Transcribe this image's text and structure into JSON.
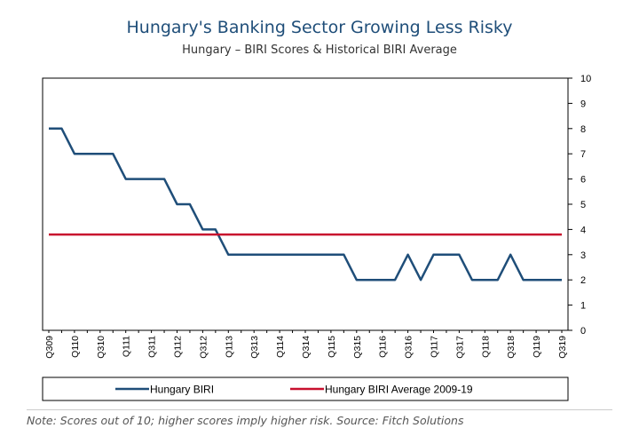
{
  "title": "Hungary's Banking Sector Growing Less Risky",
  "subtitle": "Hungary – BIRI Scores & Historical BIRI Average",
  "footnote": "Note: Scores out of 10; higher scores imply higher risk. Source: Fitch Solutions",
  "colors": {
    "biri": "#1f4e79",
    "average": "#c8102e",
    "title": "#1f4e79"
  },
  "chart_data": {
    "type": "line",
    "x": [
      "Q309",
      "Q409",
      "Q110",
      "Q210",
      "Q310",
      "Q410",
      "Q111",
      "Q211",
      "Q311",
      "Q411",
      "Q112",
      "Q212",
      "Q312",
      "Q412",
      "Q113",
      "Q213",
      "Q313",
      "Q413",
      "Q114",
      "Q214",
      "Q314",
      "Q414",
      "Q115",
      "Q215",
      "Q315",
      "Q415",
      "Q116",
      "Q216",
      "Q316",
      "Q416",
      "Q117",
      "Q217",
      "Q317",
      "Q417",
      "Q118",
      "Q218",
      "Q318",
      "Q418",
      "Q119",
      "Q219",
      "Q319"
    ],
    "x_tick_labels": [
      "Q309",
      "Q110",
      "Q310",
      "Q111",
      "Q311",
      "Q112",
      "Q312",
      "Q113",
      "Q313",
      "Q114",
      "Q314",
      "Q115",
      "Q315",
      "Q116",
      "Q316",
      "Q117",
      "Q317",
      "Q118",
      "Q318",
      "Q119",
      "Q319"
    ],
    "series": [
      {
        "name": "Hungary BIRI",
        "values": [
          8,
          8,
          7,
          7,
          7,
          7,
          6,
          6,
          6,
          6,
          5,
          5,
          4,
          4,
          3,
          3,
          3,
          3,
          3,
          3,
          3,
          3,
          3,
          3,
          2,
          2,
          2,
          2,
          3,
          2,
          3,
          3,
          3,
          2,
          2,
          2,
          3,
          2,
          2,
          2,
          2
        ]
      },
      {
        "name": "Hungary BIRI Average 2009-19",
        "values": [
          3.8,
          3.8,
          3.8,
          3.8,
          3.8,
          3.8,
          3.8,
          3.8,
          3.8,
          3.8,
          3.8,
          3.8,
          3.8,
          3.8,
          3.8,
          3.8,
          3.8,
          3.8,
          3.8,
          3.8,
          3.8,
          3.8,
          3.8,
          3.8,
          3.8,
          3.8,
          3.8,
          3.8,
          3.8,
          3.8,
          3.8,
          3.8,
          3.8,
          3.8,
          3.8,
          3.8,
          3.8,
          3.8,
          3.8,
          3.8,
          3.8
        ]
      }
    ],
    "yticks": [
      0,
      1,
      2,
      3,
      4,
      5,
      6,
      7,
      8,
      9,
      10
    ],
    "ylim": [
      0,
      10
    ],
    "y_axis_side": "right",
    "grid": false,
    "legend_position": "bottom"
  }
}
